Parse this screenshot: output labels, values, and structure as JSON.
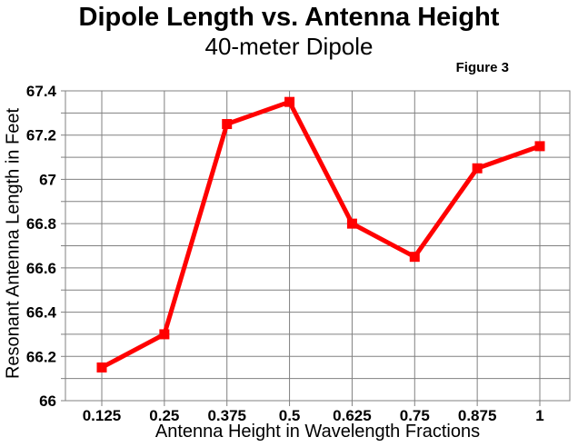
{
  "chart_data": {
    "type": "line",
    "title": "Dipole Length vs. Antenna Height",
    "subtitle": "40-meter Dipole",
    "figure_label": "Figure 3",
    "xlabel": "Antenna Height in Wavelength Fractions",
    "ylabel": "Resonant Antenna Length in Feet",
    "x": [
      0.125,
      0.25,
      0.375,
      0.5,
      0.625,
      0.75,
      0.875,
      1
    ],
    "y": [
      66.15,
      66.3,
      67.25,
      67.35,
      66.8,
      66.65,
      67.05,
      67.15
    ],
    "x_tick_labels": [
      "0.125",
      "0.25",
      "0.375",
      "0.5",
      "0.625",
      "0.75",
      "0.875",
      "1"
    ],
    "y_tick_labels": [
      "66",
      "66.2",
      "66.4",
      "66.6",
      "66.8",
      "67",
      "67.2",
      "67.4"
    ],
    "ylim": [
      66,
      67.4
    ],
    "y_major_step": 0.2,
    "y_minor_step": 0.1,
    "grid": true,
    "legend": "none",
    "line_color": "#FF0000",
    "grid_color": "#808080",
    "text_color": "#000000",
    "background_color": "#FFFFFF",
    "marker": "square"
  }
}
